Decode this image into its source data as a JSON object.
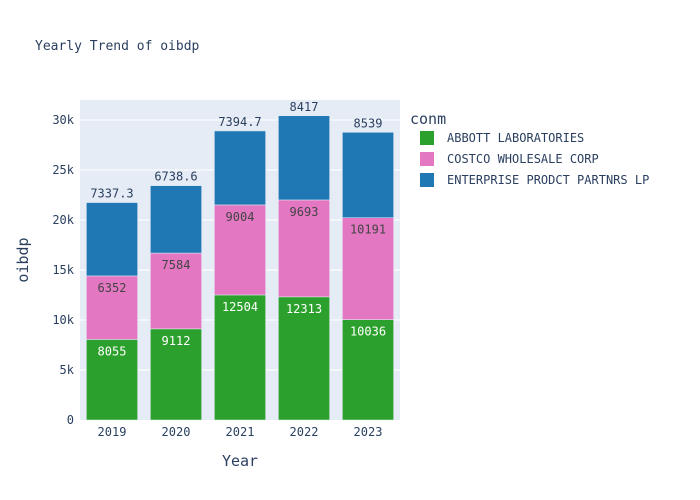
{
  "chart_data": {
    "type": "bar",
    "barmode": "stack",
    "title": "Yearly Trend of oibdp",
    "xlabel": "Year",
    "ylabel": "oibdp",
    "categories": [
      "2019",
      "2020",
      "2021",
      "2022",
      "2023"
    ],
    "ylim": [
      0,
      32000
    ],
    "yticks": [
      0,
      5000,
      10000,
      15000,
      20000,
      25000,
      30000
    ],
    "ytick_labels": [
      "0",
      "5k",
      "10k",
      "15k",
      "20k",
      "25k",
      "30k"
    ],
    "grid": true,
    "legend_title": "conm",
    "legend_position": "right",
    "series": [
      {
        "name": "ABBOTT LABORATORIES",
        "color": "#2ca02c",
        "values": [
          8055,
          9112,
          12504,
          12313,
          10036
        ],
        "labels": [
          "8055",
          "9112",
          "12504",
          "12313",
          "10036"
        ],
        "label_color": "#ffffff"
      },
      {
        "name": "COSTCO WHOLESALE CORP",
        "color": "#e377c2",
        "values": [
          6352,
          7584,
          9004,
          9693,
          10191
        ],
        "labels": [
          "6352",
          "7584",
          "9004",
          "9693",
          "10191"
        ],
        "label_color": "#444444"
      },
      {
        "name": "ENTERPRISE PRODCT PARTNRS LP",
        "color": "#1f77b4",
        "values": [
          7337.3,
          6738.6,
          7394.7,
          8417,
          8539
        ],
        "labels": [
          "7337.3",
          "6738.6",
          "7394.7",
          "8417",
          "8539"
        ],
        "label_color": "#2a3f5f"
      }
    ]
  }
}
